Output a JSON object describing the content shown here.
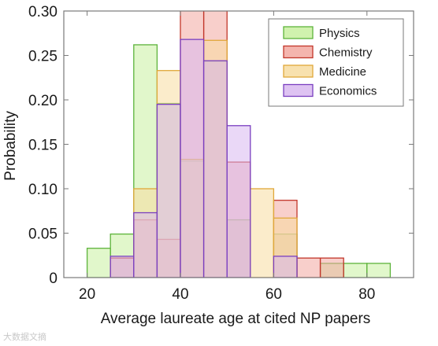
{
  "chart_data": {
    "type": "bar",
    "xlabel": "Average laureate age at cited NP papers",
    "ylabel": "Probability",
    "xlim": [
      15,
      90
    ],
    "ylim": [
      0,
      0.3
    ],
    "x_ticks": [
      20,
      40,
      60,
      80
    ],
    "y_ticks": [
      {
        "value": 0.3,
        "label": "0.30"
      },
      {
        "value": 0.25,
        "label": "0.25"
      },
      {
        "value": 0.2,
        "label": "0.20"
      },
      {
        "value": 0.15,
        "label": "0.15"
      },
      {
        "value": 0.1,
        "label": "0.10"
      },
      {
        "value": 0.05,
        "label": "0.05"
      },
      {
        "value": 0,
        "label": "0"
      }
    ],
    "grid": false,
    "legend_position": "top-right",
    "bin_width": 5,
    "bin_starts": [
      20,
      25,
      30,
      35,
      40,
      45,
      50,
      55,
      60,
      65,
      70,
      75,
      80
    ],
    "series": [
      {
        "name": "Physics",
        "fill": "#c8f0a0",
        "stroke": "#5db33b",
        "values": [
          0.033,
          0.049,
          0.262,
          0.196,
          0.131,
          0.243,
          0.065,
          0.0,
          0.049,
          0.0,
          0.016,
          0.016,
          0.016
        ]
      },
      {
        "name": "Chemistry",
        "fill": "#f2a8a0",
        "stroke": "#c2362a",
        "values": [
          0.0,
          0.022,
          0.065,
          0.043,
          0.305,
          0.305,
          0.13,
          0.0,
          0.087,
          0.022,
          0.022,
          0.0,
          0.0
        ]
      },
      {
        "name": "Medicine",
        "fill": "#f7dca0",
        "stroke": "#e0a83a",
        "values": [
          0.0,
          0.0,
          0.1,
          0.233,
          0.133,
          0.267,
          0.0,
          0.1,
          0.067,
          0.0,
          0.0,
          0.0,
          0.0
        ]
      },
      {
        "name": "Economics",
        "fill": "#d8b8f0",
        "stroke": "#7a3fc0",
        "values": [
          0.0,
          0.024,
          0.073,
          0.195,
          0.268,
          0.244,
          0.171,
          0.0,
          0.024,
          0.0,
          0.0,
          0.0,
          0.0
        ]
      }
    ]
  },
  "watermark": "大数据文摘"
}
